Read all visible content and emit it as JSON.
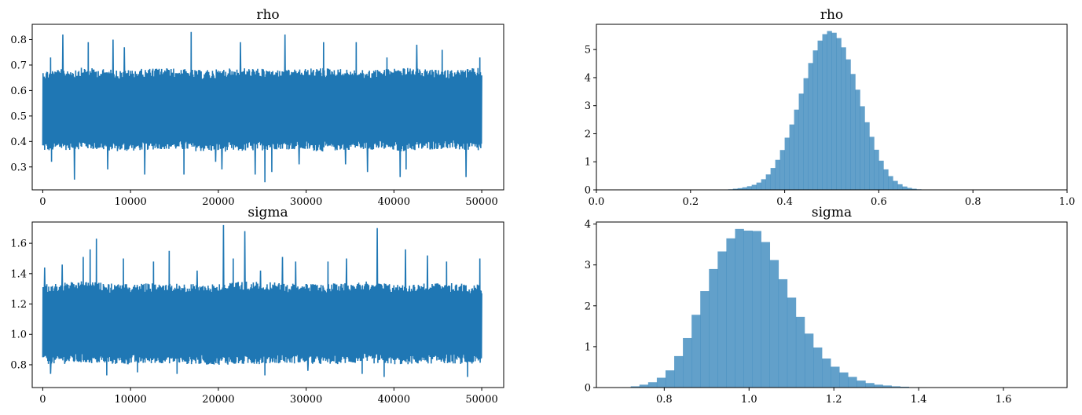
{
  "chart_data": [
    {
      "type": "line",
      "title": "rho",
      "xlabel": "",
      "ylabel": "",
      "xlim": [
        -1200,
        52500
      ],
      "ylim": [
        0.21,
        0.86
      ],
      "xticks": [
        0,
        10000,
        20000,
        30000,
        40000,
        50000
      ],
      "xtick_labels": [
        "0",
        "10000",
        "20000",
        "30000",
        "40000",
        "50000"
      ],
      "yticks": [
        0.3,
        0.4,
        0.5,
        0.6,
        0.7,
        0.8
      ],
      "ytick_labels": [
        "0.3",
        "0.4",
        "0.5",
        "0.6",
        "0.7",
        "0.8"
      ],
      "color": "#1f77b4",
      "series": [
        {
          "x_range": [
            0,
            50000
          ],
          "band_low": [
            0.36,
            0.37,
            0.36,
            0.37,
            0.36,
            0.36,
            0.37,
            0.36,
            0.37,
            0.36,
            0.37,
            0.36
          ],
          "band_high": [
            0.68,
            0.69,
            0.68,
            0.69,
            0.68,
            0.69,
            0.68,
            0.69,
            0.68,
            0.69,
            0.68,
            0.69
          ],
          "spikes": [
            [
              900,
              0.73
            ],
            [
              1000,
              0.32
            ],
            [
              2300,
              0.82
            ],
            [
              3600,
              0.25
            ],
            [
              5200,
              0.79
            ],
            [
              7400,
              0.29
            ],
            [
              8000,
              0.8
            ],
            [
              9300,
              0.77
            ],
            [
              11600,
              0.27
            ],
            [
              16900,
              0.83
            ],
            [
              16100,
              0.27
            ],
            [
              19700,
              0.32
            ],
            [
              20400,
              0.29
            ],
            [
              22500,
              0.79
            ],
            [
              24200,
              0.27
            ],
            [
              25300,
              0.24
            ],
            [
              26100,
              0.28
            ],
            [
              27600,
              0.82
            ],
            [
              29200,
              0.31
            ],
            [
              32000,
              0.79
            ],
            [
              34500,
              0.31
            ],
            [
              35700,
              0.79
            ],
            [
              37000,
              0.28
            ],
            [
              39200,
              0.73
            ],
            [
              40700,
              0.26
            ],
            [
              41400,
              0.29
            ],
            [
              42600,
              0.78
            ],
            [
              45500,
              0.76
            ],
            [
              48200,
              0.26
            ],
            [
              49800,
              0.73
            ]
          ]
        }
      ]
    },
    {
      "type": "bar",
      "title": "rho",
      "xlabel": "",
      "ylabel": "",
      "xlim": [
        0.0,
        1.0
      ],
      "ylim": [
        0,
        5.9
      ],
      "xticks": [
        0.0,
        0.2,
        0.4,
        0.6,
        0.8,
        1.0
      ],
      "xtick_labels": [
        "0.0",
        "0.2",
        "0.4",
        "0.6",
        "0.8",
        "1.0"
      ],
      "yticks": [
        0,
        1,
        2,
        3,
        4,
        5
      ],
      "ytick_labels": [
        "0",
        "1",
        "2",
        "3",
        "4",
        "5"
      ],
      "color": "#1f77b4",
      "bin_start": 0.26,
      "bin_width": 0.01,
      "values": [
        0.01,
        0.01,
        0.02,
        0.04,
        0.06,
        0.09,
        0.13,
        0.18,
        0.26,
        0.38,
        0.55,
        0.78,
        1.07,
        1.42,
        1.86,
        2.33,
        2.86,
        3.43,
        3.98,
        4.52,
        4.97,
        5.32,
        5.55,
        5.66,
        5.6,
        5.41,
        5.08,
        4.65,
        4.13,
        3.57,
        2.98,
        2.41,
        1.89,
        1.43,
        1.04,
        0.73,
        0.49,
        0.32,
        0.2,
        0.12,
        0.07,
        0.04,
        0.02,
        0.01,
        0.01
      ]
    },
    {
      "type": "line",
      "title": "sigma",
      "xlabel": "",
      "ylabel": "",
      "xlim": [
        -1200,
        52500
      ],
      "ylim": [
        0.65,
        1.74
      ],
      "xticks": [
        0,
        10000,
        20000,
        30000,
        40000,
        50000
      ],
      "xtick_labels": [
        "0",
        "10000",
        "20000",
        "30000",
        "40000",
        "50000"
      ],
      "yticks": [
        0.8,
        1.0,
        1.2,
        1.4,
        1.6
      ],
      "ytick_labels": [
        "0.8",
        "1.0",
        "1.2",
        "1.4",
        "1.6"
      ],
      "color": "#1f77b4",
      "series": [
        {
          "x_range": [
            0,
            50000
          ],
          "band_low": [
            0.8,
            0.81,
            0.8,
            0.81,
            0.8,
            0.8,
            0.81,
            0.8,
            0.81,
            0.8,
            0.81,
            0.8
          ],
          "band_high": [
            1.33,
            1.35,
            1.33,
            1.34,
            1.33,
            1.35,
            1.34,
            1.33,
            1.35,
            1.33,
            1.34,
            1.33
          ],
          "spikes": [
            [
              200,
              1.44
            ],
            [
              900,
              0.74
            ],
            [
              2200,
              1.46
            ],
            [
              4600,
              1.51
            ],
            [
              5400,
              1.56
            ],
            [
              6100,
              1.63
            ],
            [
              7300,
              0.73
            ],
            [
              9200,
              1.5
            ],
            [
              10800,
              0.75
            ],
            [
              12600,
              1.48
            ],
            [
              14400,
              1.55
            ],
            [
              15300,
              0.74
            ],
            [
              17600,
              1.42
            ],
            [
              20600,
              1.72
            ],
            [
              21700,
              1.5
            ],
            [
              23000,
              1.68
            ],
            [
              24800,
              1.42
            ],
            [
              25300,
              0.73
            ],
            [
              27300,
              1.51
            ],
            [
              28800,
              1.48
            ],
            [
              30200,
              0.76
            ],
            [
              32500,
              1.48
            ],
            [
              34600,
              1.5
            ],
            [
              36400,
              0.74
            ],
            [
              38100,
              1.7
            ],
            [
              38900,
              0.72
            ],
            [
              41300,
              1.56
            ],
            [
              43800,
              1.52
            ],
            [
              46000,
              1.48
            ],
            [
              48400,
              0.72
            ],
            [
              49800,
              1.5
            ]
          ]
        }
      ]
    },
    {
      "type": "bar",
      "title": "sigma",
      "xlabel": "",
      "ylabel": "",
      "xlim": [
        0.64,
        1.75
      ],
      "ylim": [
        0,
        4.05
      ],
      "xticks": [
        0.8,
        1.0,
        1.2,
        1.4,
        1.6
      ],
      "xtick_labels": [
        "0.8",
        "1.0",
        "1.2",
        "1.4",
        "1.6"
      ],
      "yticks": [
        0,
        1,
        2,
        3,
        4
      ],
      "ytick_labels": [
        "0",
        "1",
        "2",
        "3",
        "4"
      ],
      "color": "#1f77b4",
      "bin_start": 0.68,
      "bin_width": 0.0205,
      "values": [
        0.005,
        0.01,
        0.03,
        0.07,
        0.13,
        0.24,
        0.42,
        0.77,
        1.21,
        1.78,
        2.36,
        2.9,
        3.33,
        3.65,
        3.88,
        3.84,
        3.83,
        3.56,
        3.12,
        2.65,
        2.2,
        1.73,
        1.32,
        0.98,
        0.71,
        0.51,
        0.37,
        0.26,
        0.17,
        0.11,
        0.07,
        0.05,
        0.03,
        0.02,
        0.01,
        0.01,
        0.005,
        0.003,
        0.002,
        0.001,
        0.001,
        0.001,
        0.001,
        0.001,
        0.001,
        0.001,
        0.001,
        0.001,
        0.001,
        0.001,
        0.001,
        0.001
      ]
    }
  ]
}
